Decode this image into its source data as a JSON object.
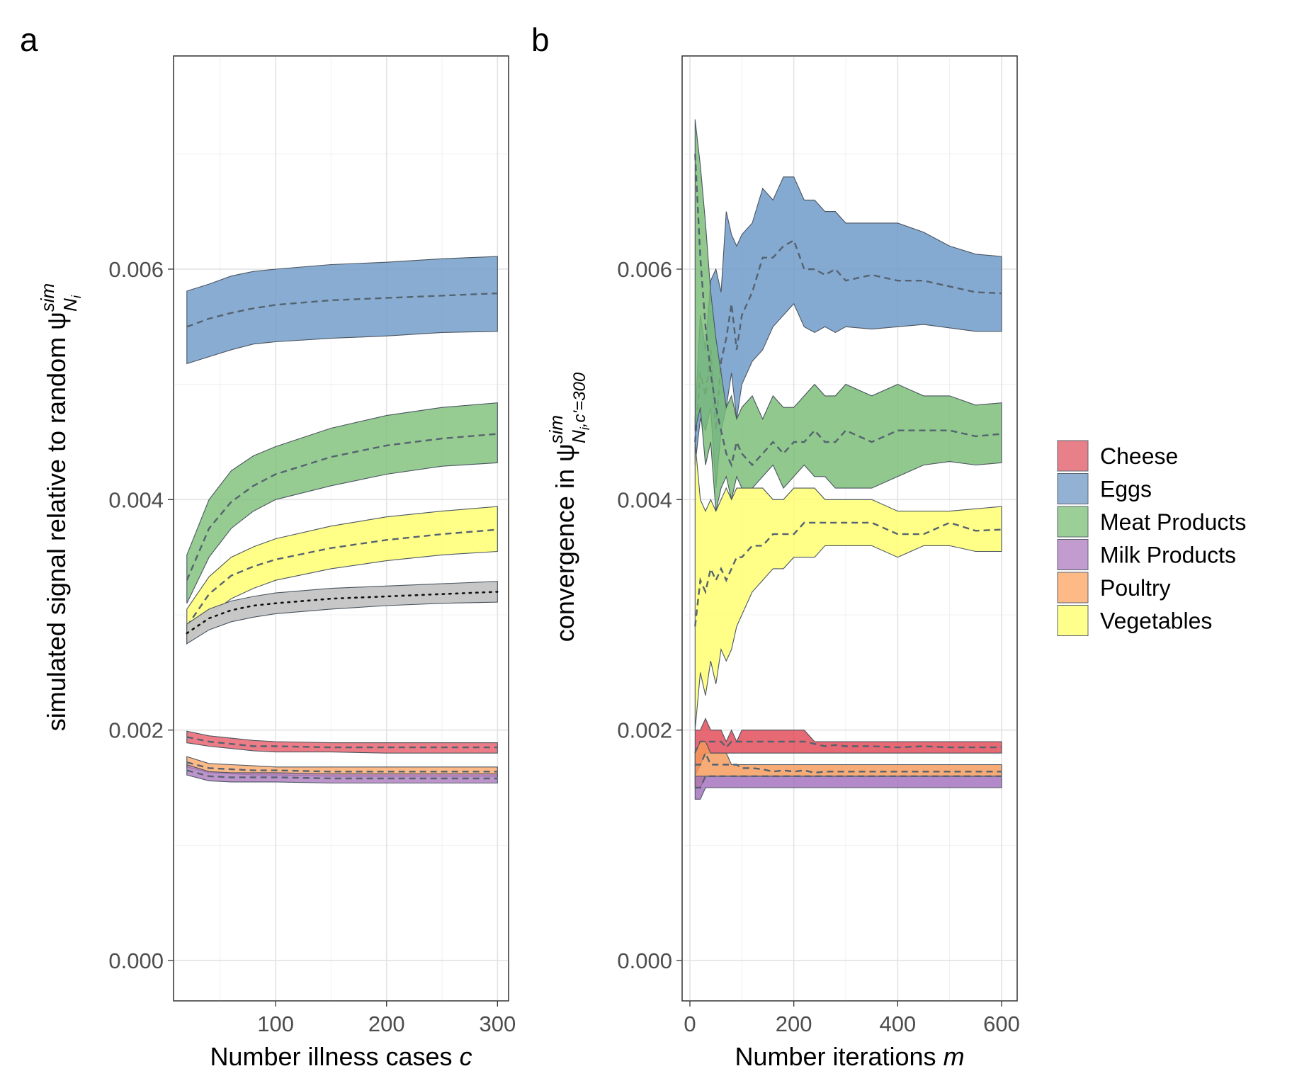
{
  "chart_data": [
    {
      "panel": "a",
      "type": "area",
      "xlabel": "Number illness cases c",
      "xlabel_parts": [
        "Number illness cases ",
        "c"
      ],
      "ylabel": "simulated signal relative to random ψ",
      "ylabel_symbol": {
        "sup": "sim",
        "sub": "N",
        "subsub": "i"
      },
      "xlim": [
        8,
        310
      ],
      "ylim": [
        -0.00035,
        0.00785
      ],
      "xticks": [
        100,
        200,
        300
      ],
      "xtick_labels": [
        "100",
        "200",
        "300"
      ],
      "yticks": [
        0,
        0.002,
        0.004,
        0.006
      ],
      "ytick_labels": [
        "0.000",
        "0.002",
        "0.004",
        "0.006"
      ],
      "grid": true,
      "x": [
        20,
        40,
        60,
        80,
        100,
        150,
        200,
        250,
        300
      ],
      "series": [
        {
          "name": "Eggs",
          "color": "#6f9bc8",
          "lower": [
            0.00518,
            0.00524,
            0.0053,
            0.00535,
            0.00537,
            0.0054,
            0.00542,
            0.00545,
            0.00546
          ],
          "mean": [
            0.0055,
            0.00557,
            0.00562,
            0.00566,
            0.00569,
            0.00573,
            0.00575,
            0.00577,
            0.00579
          ],
          "upper": [
            0.00581,
            0.00587,
            0.00594,
            0.00598,
            0.006,
            0.00604,
            0.00606,
            0.00609,
            0.00611
          ]
        },
        {
          "name": "Meat Products",
          "color": "#7fc07a",
          "lower": [
            0.0031,
            0.0035,
            0.00375,
            0.0039,
            0.004,
            0.00412,
            0.00422,
            0.00429,
            0.00432
          ],
          "mean": [
            0.0033,
            0.00375,
            0.00398,
            0.00412,
            0.00422,
            0.00437,
            0.00447,
            0.00453,
            0.00457
          ],
          "upper": [
            0.00352,
            0.004,
            0.00425,
            0.00438,
            0.00446,
            0.00462,
            0.00473,
            0.0048,
            0.00484
          ]
        },
        {
          "name": "Vegetables",
          "color": "#ffff6e",
          "lower": [
            0.00275,
            0.003,
            0.00314,
            0.00323,
            0.0033,
            0.0034,
            0.00347,
            0.00352,
            0.00355
          ],
          "mean": [
            0.0029,
            0.00318,
            0.00334,
            0.00342,
            0.00348,
            0.00358,
            0.00365,
            0.0037,
            0.00374
          ],
          "upper": [
            0.00305,
            0.00333,
            0.0035,
            0.00359,
            0.00366,
            0.00377,
            0.00385,
            0.0039,
            0.00394
          ]
        },
        {
          "name": "",
          "reference": true,
          "color": "#c4c4c4",
          "lower": [
            0.00275,
            0.00287,
            0.00294,
            0.00298,
            0.00301,
            0.00305,
            0.00308,
            0.0031,
            0.00311
          ],
          "mean": [
            0.00284,
            0.00297,
            0.00304,
            0.00308,
            0.0031,
            0.00314,
            0.00316,
            0.00318,
            0.0032
          ],
          "upper": [
            0.00292,
            0.00305,
            0.00312,
            0.00316,
            0.00319,
            0.00323,
            0.00325,
            0.00327,
            0.00329
          ]
        },
        {
          "name": "Cheese",
          "color": "#e8606c",
          "lower": [
            0.00189,
            0.00186,
            0.00184,
            0.00182,
            0.00181,
            0.00181,
            0.0018,
            0.0018,
            0.0018
          ],
          "mean": [
            0.00194,
            0.0019,
            0.00188,
            0.00186,
            0.00186,
            0.00185,
            0.00185,
            0.00185,
            0.00185
          ],
          "upper": [
            0.00199,
            0.00195,
            0.00193,
            0.00191,
            0.0019,
            0.00189,
            0.00189,
            0.00189,
            0.00189
          ]
        },
        {
          "name": "Poultry",
          "color": "#fcab6c",
          "lower": [
            0.00168,
            0.00163,
            0.00162,
            0.00161,
            0.00161,
            0.0016,
            0.0016,
            0.0016,
            0.0016
          ],
          "mean": [
            0.00172,
            0.00167,
            0.00166,
            0.00165,
            0.00165,
            0.00164,
            0.00164,
            0.00164,
            0.00164
          ],
          "upper": [
            0.00177,
            0.00171,
            0.0017,
            0.00169,
            0.00168,
            0.00168,
            0.00168,
            0.00168,
            0.00168
          ]
        },
        {
          "name": "Milk Products",
          "color": "#ae7ec0",
          "lower": [
            0.00161,
            0.00156,
            0.00155,
            0.00155,
            0.00155,
            0.00154,
            0.00154,
            0.00154,
            0.00154
          ],
          "mean": [
            0.00165,
            0.0016,
            0.00159,
            0.00159,
            0.00159,
            0.00158,
            0.00158,
            0.00158,
            0.00158
          ],
          "upper": [
            0.0017,
            0.00164,
            0.00163,
            0.00163,
            0.00163,
            0.00162,
            0.00162,
            0.00162,
            0.00162
          ]
        }
      ]
    },
    {
      "panel": "b",
      "type": "area",
      "xlabel": "Number iterations m",
      "xlabel_parts": [
        "Number iterations ",
        "m"
      ],
      "ylabel": "convergence in ψ",
      "ylabel_symbol": {
        "sup": "sim",
        "sub": "N",
        "subsub": "i",
        "sub_rest": ",c'=300"
      },
      "xlim": [
        -15,
        630
      ],
      "ylim": [
        -0.00035,
        0.00785
      ],
      "xticks": [
        0,
        200,
        400,
        600
      ],
      "xtick_labels": [
        "0",
        "200",
        "400",
        "600"
      ],
      "yticks": [
        0,
        0.002,
        0.004,
        0.006
      ],
      "ytick_labels": [
        "0.000",
        "0.002",
        "0.004",
        "0.006"
      ],
      "grid": true,
      "x": [
        10,
        20,
        30,
        40,
        50,
        60,
        70,
        80,
        90,
        100,
        120,
        140,
        160,
        180,
        200,
        220,
        240,
        260,
        280,
        300,
        350,
        400,
        450,
        500,
        550,
        600
      ],
      "series": [
        {
          "name": "Eggs",
          "color": "#6a97c7",
          "lower": [
            0.0043,
            0.0047,
            0.0046,
            0.0048,
            0.0041,
            0.0046,
            0.0048,
            0.0051,
            0.0047,
            0.005,
            0.0052,
            0.0053,
            0.0055,
            0.0056,
            0.0057,
            0.0055,
            0.00545,
            0.0055,
            0.00545,
            0.0055,
            0.00548,
            0.0055,
            0.00552,
            0.00549,
            0.00546,
            0.00546
          ],
          "mean": [
            0.0045,
            0.0051,
            0.0049,
            0.0053,
            0.0046,
            0.0052,
            0.0054,
            0.0057,
            0.0053,
            0.0056,
            0.0058,
            0.0061,
            0.0061,
            0.0062,
            0.00625,
            0.006,
            0.006,
            0.00595,
            0.006,
            0.0059,
            0.00595,
            0.0059,
            0.0059,
            0.00585,
            0.0058,
            0.00579
          ],
          "upper": [
            0.0047,
            0.0056,
            0.0053,
            0.0059,
            0.006,
            0.0058,
            0.0065,
            0.0063,
            0.0062,
            0.0063,
            0.0064,
            0.0067,
            0.0066,
            0.0068,
            0.0068,
            0.0066,
            0.0066,
            0.0065,
            0.0065,
            0.0064,
            0.0064,
            0.0064,
            0.00632,
            0.0062,
            0.00613,
            0.00611
          ]
        },
        {
          "name": "Meat Products",
          "color": "#78bc74",
          "lower": [
            0.0046,
            0.0048,
            0.0043,
            0.0045,
            0.0039,
            0.0041,
            0.0042,
            0.004,
            0.0042,
            0.0041,
            0.0041,
            0.0042,
            0.0043,
            0.0041,
            0.0042,
            0.0043,
            0.0042,
            0.0042,
            0.0041,
            0.0041,
            0.0041,
            0.0042,
            0.0043,
            0.00433,
            0.0043,
            0.00432
          ],
          "mean": [
            0.007,
            0.0061,
            0.0055,
            0.0051,
            0.0048,
            0.0046,
            0.0044,
            0.0043,
            0.0045,
            0.0044,
            0.0043,
            0.0044,
            0.0045,
            0.0044,
            0.0045,
            0.0045,
            0.0046,
            0.0045,
            0.0045,
            0.0046,
            0.0045,
            0.0046,
            0.0046,
            0.0046,
            0.00455,
            0.00457
          ],
          "upper": [
            0.0073,
            0.0069,
            0.0064,
            0.0058,
            0.0054,
            0.0051,
            0.0048,
            0.0049,
            0.0047,
            0.0048,
            0.0049,
            0.0047,
            0.0049,
            0.0048,
            0.0048,
            0.0049,
            0.005,
            0.0049,
            0.0049,
            0.005,
            0.0049,
            0.005,
            0.0049,
            0.0049,
            0.00482,
            0.00484
          ]
        },
        {
          "name": "Vegetables",
          "color": "#ffff6e",
          "lower": [
            0.002,
            0.0025,
            0.0023,
            0.0026,
            0.0024,
            0.0027,
            0.0026,
            0.0027,
            0.0029,
            0.003,
            0.0032,
            0.0033,
            0.0034,
            0.0034,
            0.0035,
            0.0035,
            0.0035,
            0.0036,
            0.0036,
            0.0036,
            0.0036,
            0.0035,
            0.0036,
            0.0036,
            0.00355,
            0.00355
          ],
          "mean": [
            0.0029,
            0.0033,
            0.0032,
            0.0034,
            0.0033,
            0.0034,
            0.0033,
            0.0034,
            0.0035,
            0.0035,
            0.0036,
            0.0036,
            0.0037,
            0.0037,
            0.0037,
            0.0038,
            0.0038,
            0.0038,
            0.0038,
            0.0038,
            0.0038,
            0.0037,
            0.0037,
            0.0038,
            0.00373,
            0.00374
          ],
          "upper": [
            0.0045,
            0.004,
            0.0039,
            0.004,
            0.0039,
            0.004,
            0.0041,
            0.004,
            0.0041,
            0.0041,
            0.0041,
            0.0041,
            0.004,
            0.004,
            0.0041,
            0.0041,
            0.0041,
            0.004,
            0.004,
            0.004,
            0.004,
            0.0039,
            0.0039,
            0.0039,
            0.00392,
            0.00394
          ]
        },
        {
          "name": "Cheese",
          "color": "#e04856",
          "lower": [
            0.0016,
            0.0017,
            0.0018,
            0.0018,
            0.0018,
            0.0018,
            0.0018,
            0.0018,
            0.0018,
            0.0018,
            0.0018,
            0.0018,
            0.0018,
            0.0018,
            0.0018,
            0.0018,
            0.0018,
            0.0018,
            0.0018,
            0.0018,
            0.0018,
            0.0018,
            0.0018,
            0.0018,
            0.0018,
            0.0018
          ],
          "mean": [
            0.0018,
            0.0019,
            0.0019,
            0.0019,
            0.0019,
            0.0019,
            0.00185,
            0.0019,
            0.0019,
            0.0019,
            0.0019,
            0.0019,
            0.0019,
            0.0019,
            0.0019,
            0.0019,
            0.00188,
            0.00186,
            0.00187,
            0.00186,
            0.00186,
            0.00185,
            0.00186,
            0.00185,
            0.00185,
            0.00185
          ],
          "upper": [
            0.002,
            0.002,
            0.0021,
            0.002,
            0.002,
            0.002,
            0.0019,
            0.002,
            0.0019,
            0.002,
            0.002,
            0.002,
            0.002,
            0.002,
            0.002,
            0.002,
            0.0019,
            0.0019,
            0.0019,
            0.0019,
            0.0019,
            0.0019,
            0.0019,
            0.0019,
            0.0019,
            0.0019
          ]
        },
        {
          "name": "Poultry",
          "color": "#f59a59",
          "lower": [
            0.0015,
            0.0015,
            0.0016,
            0.0016,
            0.0016,
            0.0016,
            0.0016,
            0.0016,
            0.0016,
            0.0016,
            0.0016,
            0.0016,
            0.0016,
            0.0016,
            0.0016,
            0.0016,
            0.0016,
            0.0016,
            0.0016,
            0.0016,
            0.0016,
            0.0016,
            0.0016,
            0.0016,
            0.0016,
            0.0016
          ],
          "mean": [
            0.0017,
            0.0017,
            0.0018,
            0.0017,
            0.0017,
            0.0017,
            0.0017,
            0.0017,
            0.0017,
            0.00167,
            0.00167,
            0.00166,
            0.00164,
            0.00165,
            0.00164,
            0.00165,
            0.00163,
            0.00164,
            0.00164,
            0.00164,
            0.00164,
            0.00164,
            0.00164,
            0.00164,
            0.00164,
            0.00164
          ],
          "upper": [
            0.0018,
            0.0019,
            0.0019,
            0.0018,
            0.0018,
            0.0018,
            0.0018,
            0.0017,
            0.0017,
            0.0017,
            0.0017,
            0.0017,
            0.0017,
            0.0017,
            0.0017,
            0.0017,
            0.0017,
            0.0017,
            0.0017,
            0.0017,
            0.0017,
            0.0017,
            0.0017,
            0.0017,
            0.0017,
            0.0017
          ]
        },
        {
          "name": "Milk Products",
          "color": "#a36fbd",
          "lower": [
            0.0014,
            0.0014,
            0.0015,
            0.0015,
            0.0015,
            0.0015,
            0.0015,
            0.0015,
            0.0015,
            0.0015,
            0.0015,
            0.0015,
            0.0015,
            0.0015,
            0.0015,
            0.0015,
            0.0015,
            0.0015,
            0.0015,
            0.0015,
            0.0015,
            0.0015,
            0.0015,
            0.0015,
            0.0015,
            0.0015
          ],
          "mean": [
            0.0015,
            0.0015,
            0.0016,
            0.0016,
            0.0016,
            0.0016,
            0.0016,
            0.0016,
            0.0016,
            0.0016,
            0.0016,
            0.0016,
            0.0016,
            0.0016,
            0.0016,
            0.0016,
            0.0016,
            0.0016,
            0.0016,
            0.0016,
            0.0016,
            0.0016,
            0.0016,
            0.0016,
            0.0016,
            0.0016
          ],
          "upper": [
            0.0016,
            0.0016,
            0.0016,
            0.0016,
            0.0016,
            0.0016,
            0.0016,
            0.0016,
            0.0016,
            0.0016,
            0.0016,
            0.0016,
            0.0016,
            0.0016,
            0.0016,
            0.0016,
            0.0016,
            0.0016,
            0.0016,
            0.0016,
            0.0016,
            0.0016,
            0.0016,
            0.0016,
            0.0016,
            0.0016
          ]
        }
      ]
    }
  ],
  "legend": {
    "placement": "right",
    "items": [
      {
        "label": "Cheese",
        "color": "#e8808a"
      },
      {
        "label": "Eggs",
        "color": "#93b2d3"
      },
      {
        "label": "Meat Products",
        "color": "#9ccf98"
      },
      {
        "label": "Milk Products",
        "color": "#c39ccf"
      },
      {
        "label": "Poultry",
        "color": "#fdb986"
      },
      {
        "label": "Vegetables",
        "color": "#ffff8c"
      }
    ]
  }
}
